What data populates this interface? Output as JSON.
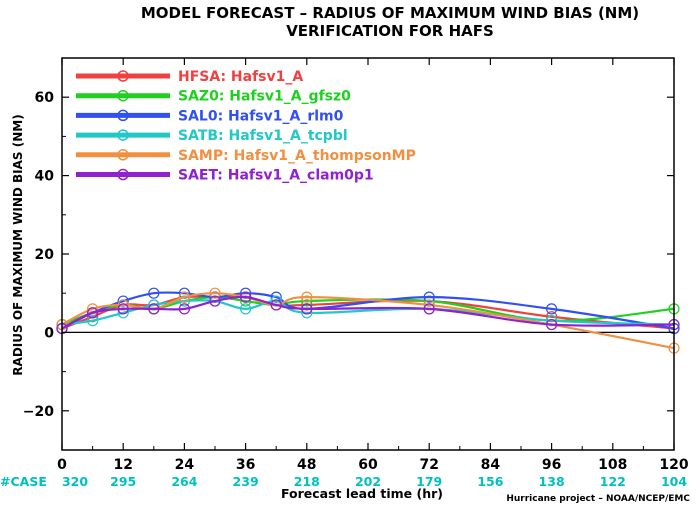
{
  "chart_data": {
    "type": "line",
    "title": "MODEL FORECAST – RADIUS OF MAXIMUM WIND BIAS (NM)",
    "subtitle": "VERIFICATION FOR HAFS",
    "xlabel": "Forecast lead time (hr)",
    "ylabel": "RADIUS OF MAXIMUM WIND BIAS (NM)",
    "credit": "Hurricane project – NOAA/NCEP/EMC",
    "xlim": [
      0,
      120
    ],
    "ylim": [
      -30,
      70
    ],
    "xticks": [
      0,
      12,
      24,
      36,
      48,
      60,
      72,
      84,
      96,
      108,
      120
    ],
    "yticks": [
      -20,
      0,
      20,
      40,
      60
    ],
    "grid": false,
    "legend_position": "top-left",
    "case_label": "#CASE",
    "case_color": "#00c0c0",
    "cases": [
      {
        "x": 0,
        "n": "320"
      },
      {
        "x": 12,
        "n": "295"
      },
      {
        "x": 24,
        "n": "264"
      },
      {
        "x": 36,
        "n": "239"
      },
      {
        "x": 48,
        "n": "218"
      },
      {
        "x": 60,
        "n": "202"
      },
      {
        "x": 72,
        "n": "179"
      },
      {
        "x": 84,
        "n": "156"
      },
      {
        "x": 96,
        "n": "138"
      },
      {
        "x": 108,
        "n": "122"
      },
      {
        "x": 120,
        "n": "104"
      }
    ],
    "series": [
      {
        "name": "HFSA:  Hafsv1_A",
        "color": "#f04040",
        "x": [
          0,
          6,
          12,
          18,
          24,
          30,
          36,
          42,
          48,
          72,
          96,
          120
        ],
        "y": [
          1,
          4,
          7,
          7,
          9,
          9,
          9,
          7,
          7,
          8,
          4,
          1
        ]
      },
      {
        "name": "SAZ0:  Hafsv1_A_gfsz0",
        "color": "#20d020",
        "x": [
          0,
          6,
          12,
          18,
          24,
          30,
          36,
          42,
          48,
          72,
          96,
          120
        ],
        "y": [
          2,
          5,
          7,
          6,
          8,
          9,
          8,
          7,
          8,
          8,
          3,
          6
        ]
      },
      {
        "name": "SAL0:  Hafsv1_A_rlm0",
        "color": "#3050f0",
        "x": [
          0,
          6,
          12,
          18,
          24,
          30,
          36,
          42,
          48,
          72,
          96,
          120
        ],
        "y": [
          1,
          5,
          8,
          10,
          10,
          9,
          10,
          9,
          6,
          9,
          6,
          1
        ]
      },
      {
        "name": "SATB:  Hafsv1_A_tcpbl",
        "color": "#20c8c8",
        "x": [
          0,
          6,
          12,
          18,
          24,
          30,
          36,
          42,
          48,
          72,
          96,
          120
        ],
        "y": [
          2,
          3,
          5,
          7,
          8,
          8,
          6,
          8,
          5,
          6,
          3,
          2
        ]
      },
      {
        "name": "SAMP:  Hafsv1_A_thompsonMP",
        "color": "#f09040",
        "x": [
          0,
          6,
          12,
          18,
          24,
          30,
          36,
          42,
          48,
          72,
          96,
          120
        ],
        "y": [
          2,
          6,
          7,
          6,
          9,
          10,
          9,
          7,
          9,
          7,
          2,
          -4
        ]
      },
      {
        "name": "SAET:  Hafsv1_A_clam0p1",
        "color": "#9020d0",
        "x": [
          0,
          6,
          12,
          18,
          24,
          30,
          36,
          42,
          48,
          72,
          96,
          120
        ],
        "y": [
          1,
          5,
          6,
          6,
          6,
          8,
          9,
          7,
          6,
          6,
          2,
          2
        ]
      }
    ]
  }
}
